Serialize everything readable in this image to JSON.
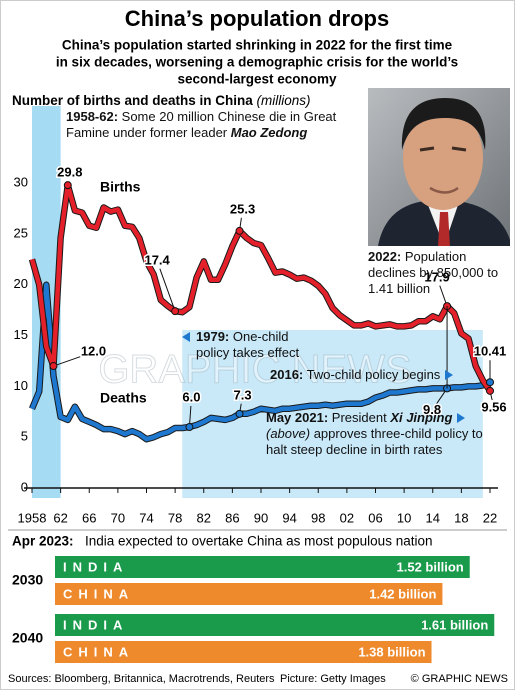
{
  "header": {
    "title": "China’s population drops",
    "subtitle": [
      "China’s population started shrinking in 2022 for the first time",
      "in six decades, worsening a demographic crisis for the world’s",
      "second-largest economy"
    ]
  },
  "chart_data": [
    {
      "type": "line",
      "title": "Number of births and deaths in China",
      "units": "(millions)",
      "x": [
        1958,
        1959,
        1960,
        1961,
        1962,
        1963,
        1964,
        1965,
        1966,
        1967,
        1968,
        1969,
        1970,
        1971,
        1972,
        1973,
        1974,
        1975,
        1976,
        1977,
        1978,
        1979,
        1980,
        1981,
        1982,
        1983,
        1984,
        1985,
        1986,
        1987,
        1988,
        1989,
        1990,
        1991,
        1992,
        1993,
        1994,
        1995,
        1996,
        1997,
        1998,
        1999,
        2000,
        2001,
        2002,
        2003,
        2004,
        2005,
        2006,
        2007,
        2008,
        2009,
        2010,
        2011,
        2012,
        2013,
        2014,
        2015,
        2016,
        2017,
        2018,
        2019,
        2020,
        2021,
        2022
      ],
      "series": [
        {
          "name": "Births",
          "color": "#e4202a",
          "values": [
            22.5,
            20.0,
            13.9,
            12.0,
            24.6,
            29.8,
            27.3,
            27.1,
            25.8,
            25.6,
            27.6,
            27.2,
            27.4,
            25.8,
            25.7,
            24.6,
            22.3,
            21.0,
            18.5,
            17.9,
            17.4,
            17.3,
            17.8,
            20.7,
            22.3,
            20.5,
            20.5,
            22.0,
            23.8,
            25.3,
            24.6,
            24.1,
            23.9,
            22.6,
            21.2,
            21.3,
            21.0,
            20.6,
            20.7,
            20.4,
            19.9,
            19.1,
            17.7,
            17.0,
            16.5,
            16.0,
            16.0,
            16.2,
            15.9,
            16.0,
            16.1,
            15.9,
            15.9,
            16.0,
            16.4,
            16.4,
            16.9,
            16.6,
            17.9,
            17.2,
            15.2,
            14.7,
            12.0,
            10.6,
            9.56
          ],
          "value_labels": [
            null,
            null,
            null,
            "12.0",
            null,
            "29.8",
            null,
            null,
            null,
            null,
            null,
            null,
            null,
            null,
            null,
            null,
            null,
            null,
            null,
            null,
            "17.4",
            null,
            null,
            null,
            null,
            null,
            null,
            null,
            null,
            "25.3",
            null,
            null,
            null,
            null,
            null,
            null,
            null,
            null,
            null,
            null,
            null,
            null,
            null,
            null,
            null,
            null,
            null,
            null,
            null,
            null,
            null,
            null,
            null,
            null,
            null,
            null,
            null,
            null,
            "17.9",
            null,
            null,
            null,
            null,
            null,
            "9.56"
          ]
        },
        {
          "name": "Deaths",
          "color": "#1f78cf",
          "values": [
            7.8,
            9.5,
            20.0,
            11.0,
            7.0,
            6.7,
            8.0,
            6.8,
            6.5,
            6.2,
            5.8,
            5.8,
            5.6,
            5.3,
            5.6,
            5.3,
            4.8,
            5.0,
            5.3,
            5.5,
            5.9,
            5.9,
            6.0,
            6.2,
            6.5,
            6.9,
            6.8,
            6.7,
            6.9,
            7.3,
            7.3,
            7.5,
            7.8,
            7.7,
            7.6,
            7.8,
            7.8,
            7.9,
            8.0,
            8.1,
            8.1,
            8.2,
            8.1,
            8.2,
            8.3,
            8.3,
            8.3,
            8.5,
            8.9,
            9.1,
            9.4,
            9.4,
            9.5,
            9.6,
            9.7,
            9.7,
            9.8,
            9.8,
            9.8,
            9.9,
            9.9,
            10.0,
            10.0,
            10.1,
            10.41
          ],
          "value_labels": [
            null,
            null,
            null,
            null,
            null,
            null,
            null,
            null,
            null,
            null,
            null,
            null,
            null,
            null,
            null,
            null,
            null,
            null,
            null,
            null,
            null,
            null,
            "6.0",
            null,
            null,
            null,
            null,
            null,
            null,
            "7.3",
            null,
            null,
            null,
            null,
            null,
            null,
            null,
            null,
            null,
            null,
            null,
            null,
            null,
            null,
            null,
            null,
            null,
            null,
            null,
            null,
            null,
            null,
            null,
            null,
            null,
            null,
            null,
            null,
            "9.8",
            null,
            null,
            null,
            null,
            null,
            "10.41"
          ]
        }
      ],
      "xlim": [
        1958,
        2022
      ],
      "xticks": [
        1958,
        {
          "value": 1962,
          "label": "62"
        },
        {
          "value": 1966,
          "label": "66"
        },
        {
          "value": 1970,
          "label": "70"
        },
        {
          "value": 1974,
          "label": "74"
        },
        {
          "value": 1978,
          "label": "78"
        },
        {
          "value": 1982,
          "label": "82"
        },
        {
          "value": 1986,
          "label": "86"
        },
        {
          "value": 1990,
          "label": "90"
        },
        {
          "value": 1994,
          "label": "94"
        },
        {
          "value": 1998,
          "label": "98"
        },
        {
          "value": 2002,
          "label": "02"
        },
        {
          "value": 2006,
          "label": "06"
        },
        {
          "value": 2010,
          "label": "10"
        },
        {
          "value": 2014,
          "label": "14"
        },
        {
          "value": 2018,
          "label": "18"
        },
        {
          "value": 2022,
          "label": "22"
        }
      ],
      "ylim": [
        0,
        37
      ],
      "yticks": [
        0,
        5,
        10,
        15,
        20,
        25,
        30
      ],
      "grid": false,
      "annotations": [
        {
          "span": [
            1958,
            1962
          ],
          "parts": [
            {
              "text": "1958-62:",
              "style": "bold"
            },
            {
              "text": " Some 20 million Chinese die in Great Famine under former leader "
            },
            {
              "text": "Mao Zedong",
              "style": "bold-italic"
            }
          ]
        },
        {
          "parts": [
            {
              "text": "2022:",
              "style": "bold"
            },
            {
              "text": " Population declines by 850,000 to 1.41 billion"
            }
          ]
        },
        {
          "span": [
            1979,
            2021
          ],
          "parts": [
            {
              "text": "1979:",
              "style": "bold"
            },
            {
              "text": " One-child policy takes effect"
            }
          ]
        },
        {
          "parts": [
            {
              "text": "2016:",
              "style": "bold"
            },
            {
              "text": " Two-child policy begins"
            }
          ]
        },
        {
          "parts": [
            {
              "text": "May 2021:",
              "style": "bold"
            },
            {
              "text": " President "
            },
            {
              "text": "Xi Jinping",
              "style": "bold-italic"
            },
            {
              "text": " (above)",
              "style": "italic"
            },
            {
              "text": " approves three-child policy to halt steep decline in birth rates"
            }
          ]
        }
      ]
    },
    {
      "type": "bar",
      "orientation": "horizontal",
      "title": "Apr 2023:",
      "subtitle": "India expected to overtake China as most populous nation",
      "categories": [
        "2030",
        "2040"
      ],
      "series": [
        {
          "name": "INDIA",
          "color": "#1a9a4b",
          "values": [
            1.52,
            1.61
          ],
          "value_labels": [
            "1.52 billion",
            "1.61 billion"
          ]
        },
        {
          "name": "CHINA",
          "color": "#ef8a2c",
          "values": [
            1.42,
            1.38
          ],
          "value_labels": [
            "1.42 billion",
            "1.38 billion"
          ]
        }
      ],
      "xlim": [
        0,
        1.62
      ]
    }
  ],
  "watermark": "GRAPHIC NEWS",
  "footer": {
    "sources": "Sources: Bloomberg, Britannica, Macrotrends, Reuters",
    "picture": "Picture: Getty Images",
    "credit": "© GRAPHIC NEWS"
  }
}
